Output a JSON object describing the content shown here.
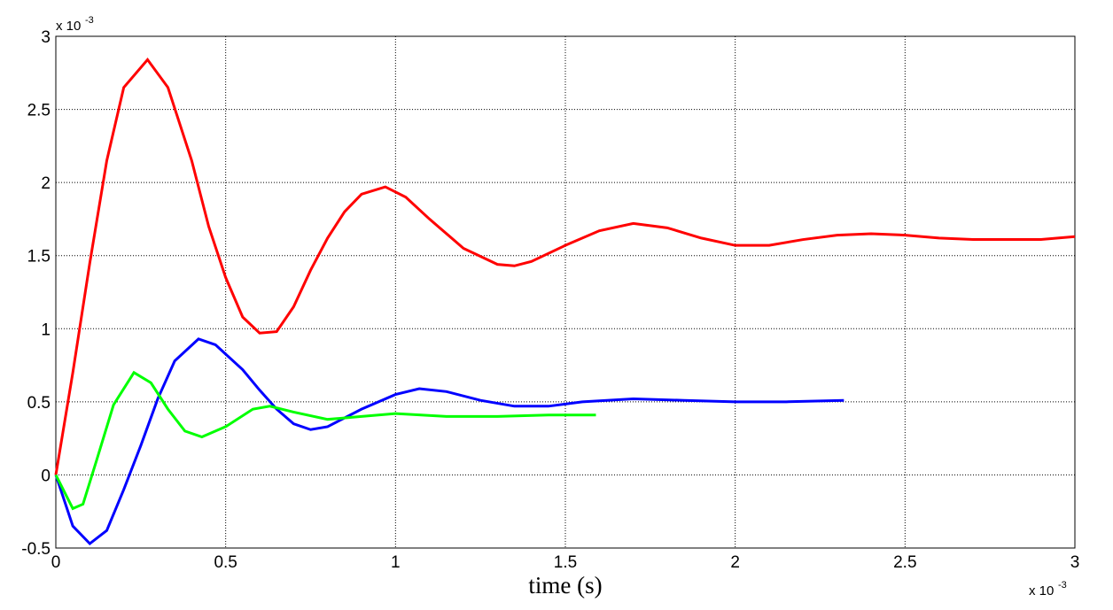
{
  "chart_data": {
    "type": "line",
    "x_label": "time (s)",
    "x_multiplier": "x 10",
    "x_multiplier_exp": "-3",
    "y_multiplier": "x 10",
    "y_multiplier_exp": "-3",
    "xlim": [
      0,
      3
    ],
    "xticks": [
      0,
      0.5,
      1,
      1.5,
      2,
      2.5,
      3
    ],
    "ylim": [
      -0.5,
      3
    ],
    "yticks": [
      -0.5,
      0,
      0.5,
      1,
      1.5,
      2,
      2.5,
      3
    ],
    "grid": true,
    "series": [
      {
        "color": "#ff0000",
        "x": [
          0,
          0.05,
          0.1,
          0.15,
          0.2,
          0.27,
          0.33,
          0.4,
          0.45,
          0.5,
          0.55,
          0.6,
          0.65,
          0.7,
          0.75,
          0.8,
          0.85,
          0.9,
          0.97,
          1.03,
          1.1,
          1.2,
          1.3,
          1.35,
          1.4,
          1.5,
          1.6,
          1.7,
          1.8,
          1.9,
          2.0,
          2.1,
          2.2,
          2.3,
          2.4,
          2.5,
          2.6,
          2.7,
          2.8,
          2.9,
          3.0
        ],
        "values": [
          0,
          0.7,
          1.45,
          2.15,
          2.65,
          2.84,
          2.65,
          2.15,
          1.7,
          1.35,
          1.08,
          0.97,
          0.98,
          1.15,
          1.4,
          1.62,
          1.8,
          1.92,
          1.97,
          1.9,
          1.75,
          1.55,
          1.44,
          1.43,
          1.46,
          1.57,
          1.67,
          1.72,
          1.69,
          1.62,
          1.57,
          1.57,
          1.61,
          1.64,
          1.65,
          1.64,
          1.62,
          1.61,
          1.61,
          1.61,
          1.63
        ]
      },
      {
        "color": "#0000ff",
        "x": [
          0,
          0.05,
          0.1,
          0.15,
          0.2,
          0.25,
          0.3,
          0.35,
          0.42,
          0.47,
          0.55,
          0.6,
          0.65,
          0.7,
          0.75,
          0.8,
          0.9,
          1.0,
          1.07,
          1.15,
          1.25,
          1.35,
          1.45,
          1.55,
          1.7,
          1.85,
          2.0,
          2.15,
          2.32
        ],
        "values": [
          0,
          -0.35,
          -0.47,
          -0.38,
          -0.1,
          0.2,
          0.52,
          0.78,
          0.93,
          0.89,
          0.72,
          0.58,
          0.45,
          0.35,
          0.31,
          0.33,
          0.45,
          0.55,
          0.59,
          0.57,
          0.51,
          0.47,
          0.47,
          0.5,
          0.52,
          0.51,
          0.5,
          0.5,
          0.51
        ]
      },
      {
        "color": "#00ff00",
        "x": [
          0,
          0.05,
          0.08,
          0.12,
          0.17,
          0.23,
          0.28,
          0.33,
          0.38,
          0.43,
          0.5,
          0.58,
          0.63,
          0.7,
          0.8,
          0.9,
          1.0,
          1.15,
          1.3,
          1.45,
          1.59
        ],
        "values": [
          0,
          -0.23,
          -0.2,
          0.1,
          0.48,
          0.7,
          0.63,
          0.45,
          0.3,
          0.26,
          0.33,
          0.45,
          0.47,
          0.43,
          0.38,
          0.4,
          0.42,
          0.4,
          0.4,
          0.41,
          0.41
        ]
      }
    ]
  }
}
